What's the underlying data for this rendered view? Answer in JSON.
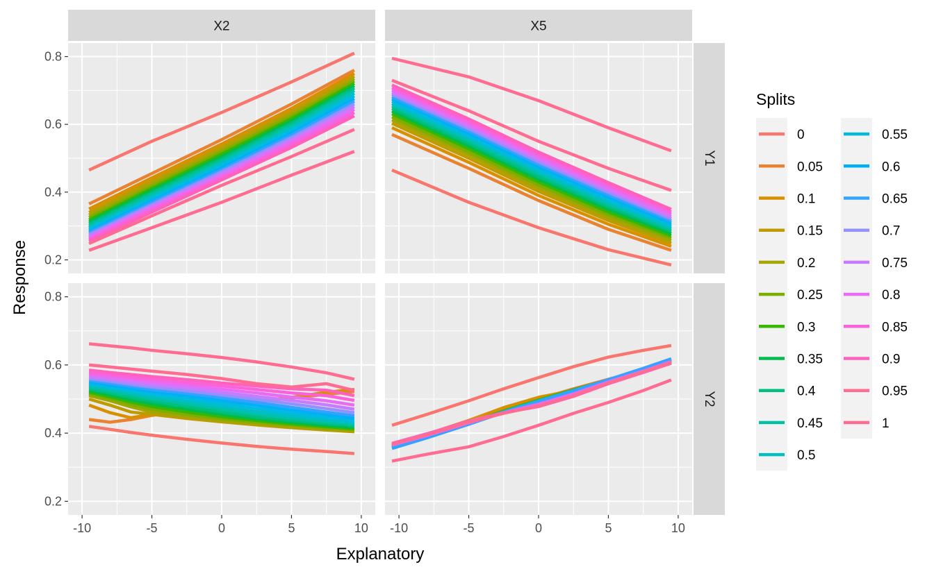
{
  "chart_data": {
    "type": "line",
    "xlabel": "Explanatory",
    "ylabel": "Response",
    "legend_title": "Splits",
    "legend_position": "right",
    "grid": true,
    "facet_columns": [
      "X2",
      "X5"
    ],
    "facet_rows": [
      "Y1",
      "Y2"
    ],
    "xlim": [
      -11,
      11
    ],
    "ylim": [
      0.16,
      0.84
    ],
    "x_ticks": [
      -10,
      -5,
      0,
      5,
      10
    ],
    "x_tick_labels": [
      "-10",
      "-5",
      "0",
      "5",
      "10"
    ],
    "y_ticks": [
      0.2,
      0.4,
      0.6,
      0.8
    ],
    "y_tick_labels": [
      "0.2",
      "0.4",
      "0.6",
      "0.8"
    ],
    "splits": [
      "0",
      "0.05",
      "0.1",
      "0.15",
      "0.2",
      "0.25",
      "0.3",
      "0.35",
      "0.4",
      "0.45",
      "0.5",
      "0.55",
      "0.6",
      "0.65",
      "0.7",
      "0.75",
      "0.8",
      "0.85",
      "0.9",
      "0.95",
      "1"
    ],
    "colors": [
      "#F8766D",
      "#EA8331",
      "#D89000",
      "#C09B00",
      "#A3A500",
      "#7CAE00",
      "#39B600",
      "#00BB4E",
      "#00BF7D",
      "#00C1A3",
      "#00BFC4",
      "#00BAE0",
      "#00B0F6",
      "#35A2FF",
      "#9590FF",
      "#C77CFF",
      "#E76BF3",
      "#FA62DB",
      "#FF62BC",
      "#FF6C91",
      "#FF6C91"
    ],
    "panels": [
      {
        "col": "X2",
        "row": "Y1",
        "x": [
          -9.5,
          -5,
          0,
          5,
          9.5
        ],
        "series": [
          {
            "name": "0",
            "values": [
              0.465,
              0.55,
              0.635,
              0.725,
              0.81
            ]
          },
          {
            "name": "0.05",
            "values": [
              0.365,
              0.455,
              0.555,
              0.66,
              0.76
            ]
          },
          {
            "name": "0.1",
            "values": [
              0.35,
              0.442,
              0.542,
              0.647,
              0.75
            ]
          },
          {
            "name": "0.15",
            "values": [
              0.34,
              0.433,
              0.533,
              0.638,
              0.742
            ]
          },
          {
            "name": "0.2",
            "values": [
              0.332,
              0.425,
              0.526,
              0.631,
              0.735
            ]
          },
          {
            "name": "0.25",
            "values": [
              0.325,
              0.418,
              0.519,
              0.624,
              0.728
            ]
          },
          {
            "name": "0.3",
            "values": [
              0.318,
              0.411,
              0.512,
              0.617,
              0.721
            ]
          },
          {
            "name": "0.35",
            "values": [
              0.312,
              0.405,
              0.505,
              0.61,
              0.714
            ]
          },
          {
            "name": "0.4",
            "values": [
              0.306,
              0.398,
              0.498,
              0.603,
              0.707
            ]
          },
          {
            "name": "0.45",
            "values": [
              0.3,
              0.392,
              0.491,
              0.596,
              0.7
            ]
          },
          {
            "name": "0.5",
            "values": [
              0.295,
              0.386,
              0.485,
              0.589,
              0.692
            ]
          },
          {
            "name": "0.55",
            "values": [
              0.29,
              0.38,
              0.478,
              0.582,
              0.684
            ]
          },
          {
            "name": "0.6",
            "values": [
              0.285,
              0.374,
              0.472,
              0.575,
              0.676
            ]
          },
          {
            "name": "0.65",
            "values": [
              0.28,
              0.369,
              0.466,
              0.568,
              0.668
            ]
          },
          {
            "name": "0.7",
            "values": [
              0.275,
              0.363,
              0.46,
              0.561,
              0.66
            ]
          },
          {
            "name": "0.75",
            "values": [
              0.27,
              0.358,
              0.454,
              0.554,
              0.652
            ]
          },
          {
            "name": "0.8",
            "values": [
              0.265,
              0.352,
              0.448,
              0.547,
              0.644
            ]
          },
          {
            "name": "0.85",
            "values": [
              0.26,
              0.347,
              0.442,
              0.54,
              0.635
            ]
          },
          {
            "name": "0.9",
            "values": [
              0.255,
              0.341,
              0.436,
              0.532,
              0.625
            ]
          },
          {
            "name": "0.95",
            "values": [
              0.248,
              0.33,
              0.42,
              0.505,
              0.585
            ]
          },
          {
            "name": "1",
            "values": [
              0.228,
              0.295,
              0.37,
              0.45,
              0.52
            ]
          }
        ]
      },
      {
        "col": "X5",
        "row": "Y1",
        "x": [
          -10.5,
          -5,
          0,
          5,
          9.5
        ],
        "series": [
          {
            "name": "0",
            "values": [
              0.465,
              0.37,
              0.295,
              0.23,
              0.185
            ]
          },
          {
            "name": "0.05",
            "values": [
              0.57,
              0.47,
              0.375,
              0.29,
              0.228
            ]
          },
          {
            "name": "0.1",
            "values": [
              0.59,
              0.488,
              0.39,
              0.305,
              0.24
            ]
          },
          {
            "name": "0.15",
            "values": [
              0.603,
              0.5,
              0.402,
              0.316,
              0.249
            ]
          },
          {
            "name": "0.2",
            "values": [
              0.613,
              0.51,
              0.412,
              0.325,
              0.257
            ]
          },
          {
            "name": "0.25",
            "values": [
              0.622,
              0.519,
              0.421,
              0.333,
              0.264
            ]
          },
          {
            "name": "0.3",
            "values": [
              0.631,
              0.528,
              0.43,
              0.341,
              0.271
            ]
          },
          {
            "name": "0.35",
            "values": [
              0.639,
              0.536,
              0.438,
              0.349,
              0.278
            ]
          },
          {
            "name": "0.4",
            "values": [
              0.647,
              0.544,
              0.446,
              0.357,
              0.285
            ]
          },
          {
            "name": "0.45",
            "values": [
              0.654,
              0.552,
              0.454,
              0.364,
              0.291
            ]
          },
          {
            "name": "0.5",
            "values": [
              0.661,
              0.559,
              0.461,
              0.371,
              0.297
            ]
          },
          {
            "name": "0.55",
            "values": [
              0.668,
              0.566,
              0.468,
              0.378,
              0.303
            ]
          },
          {
            "name": "0.6",
            "values": [
              0.675,
              0.573,
              0.475,
              0.385,
              0.309
            ]
          },
          {
            "name": "0.65",
            "values": [
              0.681,
              0.58,
              0.482,
              0.392,
              0.315
            ]
          },
          {
            "name": "0.7",
            "values": [
              0.688,
              0.587,
              0.489,
              0.399,
              0.321
            ]
          },
          {
            "name": "0.75",
            "values": [
              0.694,
              0.594,
              0.496,
              0.406,
              0.327
            ]
          },
          {
            "name": "0.8",
            "values": [
              0.701,
              0.601,
              0.503,
              0.413,
              0.334
            ]
          },
          {
            "name": "0.85",
            "values": [
              0.708,
              0.608,
              0.51,
              0.42,
              0.341
            ]
          },
          {
            "name": "0.9",
            "values": [
              0.716,
              0.616,
              0.518,
              0.428,
              0.349
            ]
          },
          {
            "name": "0.95",
            "values": [
              0.73,
              0.64,
              0.55,
              0.47,
              0.405
            ]
          },
          {
            "name": "1",
            "values": [
              0.795,
              0.74,
              0.67,
              0.59,
              0.522
            ]
          }
        ]
      },
      {
        "col": "X2",
        "row": "Y2",
        "x": [
          -9.5,
          -8,
          -6.5,
          -5,
          -2.5,
          0,
          2.5,
          5,
          7.5,
          9.5
        ],
        "series": [
          {
            "name": "0",
            "values": [
              0.42,
              0.411,
              0.402,
              0.394,
              0.382,
              0.371,
              0.361,
              0.353,
              0.346,
              0.34
            ]
          },
          {
            "name": "0.05",
            "values": [
              0.44,
              0.432,
              0.44,
              0.452,
              0.468,
              0.48,
              0.492,
              0.503,
              0.514,
              0.522
            ]
          },
          {
            "name": "0.1",
            "values": [
              0.482,
              0.46,
              0.445,
              0.455,
              0.47,
              0.482,
              0.494,
              0.505,
              0.52,
              0.528
            ]
          },
          {
            "name": "0.15",
            "values": [
              0.5,
              0.482,
              0.462,
              0.455,
              0.443,
              0.433,
              0.424,
              0.416,
              0.409,
              0.404
            ]
          },
          {
            "name": "0.2",
            "values": [
              0.51,
              0.495,
              0.477,
              0.462,
              0.448,
              0.437,
              0.428,
              0.42,
              0.412,
              0.407
            ]
          },
          {
            "name": "0.25",
            "values": [
              0.515,
              0.5,
              0.484,
              0.47,
              0.455,
              0.442,
              0.432,
              0.423,
              0.415,
              0.41
            ]
          },
          {
            "name": "0.3",
            "values": [
              0.52,
              0.506,
              0.491,
              0.478,
              0.462,
              0.448,
              0.437,
              0.427,
              0.419,
              0.413
            ]
          },
          {
            "name": "0.35",
            "values": [
              0.525,
              0.512,
              0.498,
              0.486,
              0.47,
              0.455,
              0.442,
              0.432,
              0.423,
              0.417
            ]
          },
          {
            "name": "0.4",
            "values": [
              0.53,
              0.518,
              0.505,
              0.494,
              0.478,
              0.462,
              0.448,
              0.437,
              0.428,
              0.421
            ]
          },
          {
            "name": "0.45",
            "values": [
              0.535,
              0.524,
              0.512,
              0.501,
              0.486,
              0.47,
              0.455,
              0.443,
              0.433,
              0.425
            ]
          },
          {
            "name": "0.5",
            "values": [
              0.54,
              0.53,
              0.519,
              0.508,
              0.494,
              0.478,
              0.463,
              0.45,
              0.439,
              0.43
            ]
          },
          {
            "name": "0.55",
            "values": [
              0.545,
              0.535,
              0.525,
              0.515,
              0.502,
              0.487,
              0.472,
              0.458,
              0.446,
              0.436
            ]
          },
          {
            "name": "0.6",
            "values": [
              0.55,
              0.541,
              0.531,
              0.522,
              0.51,
              0.496,
              0.481,
              0.467,
              0.454,
              0.443
            ]
          },
          {
            "name": "0.65",
            "values": [
              0.555,
              0.546,
              0.537,
              0.528,
              0.517,
              0.504,
              0.49,
              0.476,
              0.462,
              0.451
            ]
          },
          {
            "name": "0.7",
            "values": [
              0.56,
              0.552,
              0.543,
              0.535,
              0.524,
              0.512,
              0.499,
              0.486,
              0.472,
              0.46
            ]
          },
          {
            "name": "0.75",
            "values": [
              0.566,
              0.558,
              0.55,
              0.542,
              0.532,
              0.52,
              0.508,
              0.496,
              0.483,
              0.47
            ]
          },
          {
            "name": "0.8",
            "values": [
              0.572,
              0.564,
              0.557,
              0.55,
              0.54,
              0.529,
              0.518,
              0.506,
              0.495,
              0.482
            ]
          },
          {
            "name": "0.85",
            "values": [
              0.578,
              0.571,
              0.564,
              0.558,
              0.548,
              0.538,
              0.528,
              0.518,
              0.51,
              0.496
            ]
          },
          {
            "name": "0.9",
            "values": [
              0.585,
              0.578,
              0.572,
              0.566,
              0.557,
              0.547,
              0.538,
              0.53,
              0.526,
              0.51
            ]
          },
          {
            "name": "0.95",
            "values": [
              0.6,
              0.594,
              0.588,
              0.582,
              0.572,
              0.56,
              0.545,
              0.535,
              0.545,
              0.525
            ]
          },
          {
            "name": "1",
            "values": [
              0.662,
              0.656,
              0.65,
              0.643,
              0.633,
              0.622,
              0.609,
              0.594,
              0.577,
              0.558
            ]
          }
        ]
      },
      {
        "col": "X5",
        "row": "Y2",
        "x": [
          -10.5,
          -8,
          -5,
          -2.5,
          0,
          2.5,
          5,
          7.5,
          9.5
        ],
        "series": [
          {
            "name": "0",
            "values": [
              0.423,
              0.455,
              0.495,
              0.53,
              0.563,
              0.595,
              0.623,
              0.643,
              0.657
            ]
          },
          {
            "name": "0.05",
            "values": [
              0.365,
              0.395,
              0.432,
              0.467,
              0.5,
              0.53,
              0.558,
              0.585,
              0.61
            ]
          },
          {
            "name": "0.1",
            "values": [
              0.366,
              0.397,
              0.437,
              0.475,
              0.505,
              0.525,
              0.55,
              0.58,
              0.605
            ]
          },
          {
            "name": "0.3",
            "values": [
              0.362,
              0.392,
              0.43,
              0.465,
              0.497,
              0.527,
              0.556,
              0.586,
              0.612
            ]
          },
          {
            "name": "0.5",
            "values": [
              0.358,
              0.388,
              0.428,
              0.463,
              0.495,
              0.525,
              0.556,
              0.588,
              0.615
            ]
          },
          {
            "name": "0.65",
            "values": [
              0.355,
              0.386,
              0.426,
              0.461,
              0.493,
              0.524,
              0.557,
              0.59,
              0.618
            ]
          },
          {
            "name": "0.8",
            "values": [
              0.365,
              0.393,
              0.43,
              0.46,
              0.485,
              0.515,
              0.55,
              0.582,
              0.61
            ]
          },
          {
            "name": "0.9",
            "values": [
              0.37,
              0.398,
              0.435,
              0.46,
              0.478,
              0.508,
              0.545,
              0.578,
              0.605
            ]
          },
          {
            "name": "0.95",
            "values": [
              0.367,
              0.395,
              0.432,
              0.458,
              0.48,
              0.51,
              0.547,
              0.58,
              0.607
            ]
          },
          {
            "name": "1",
            "values": [
              0.318,
              0.338,
              0.36,
              0.39,
              0.423,
              0.458,
              0.49,
              0.525,
              0.556
            ]
          }
        ]
      }
    ]
  }
}
